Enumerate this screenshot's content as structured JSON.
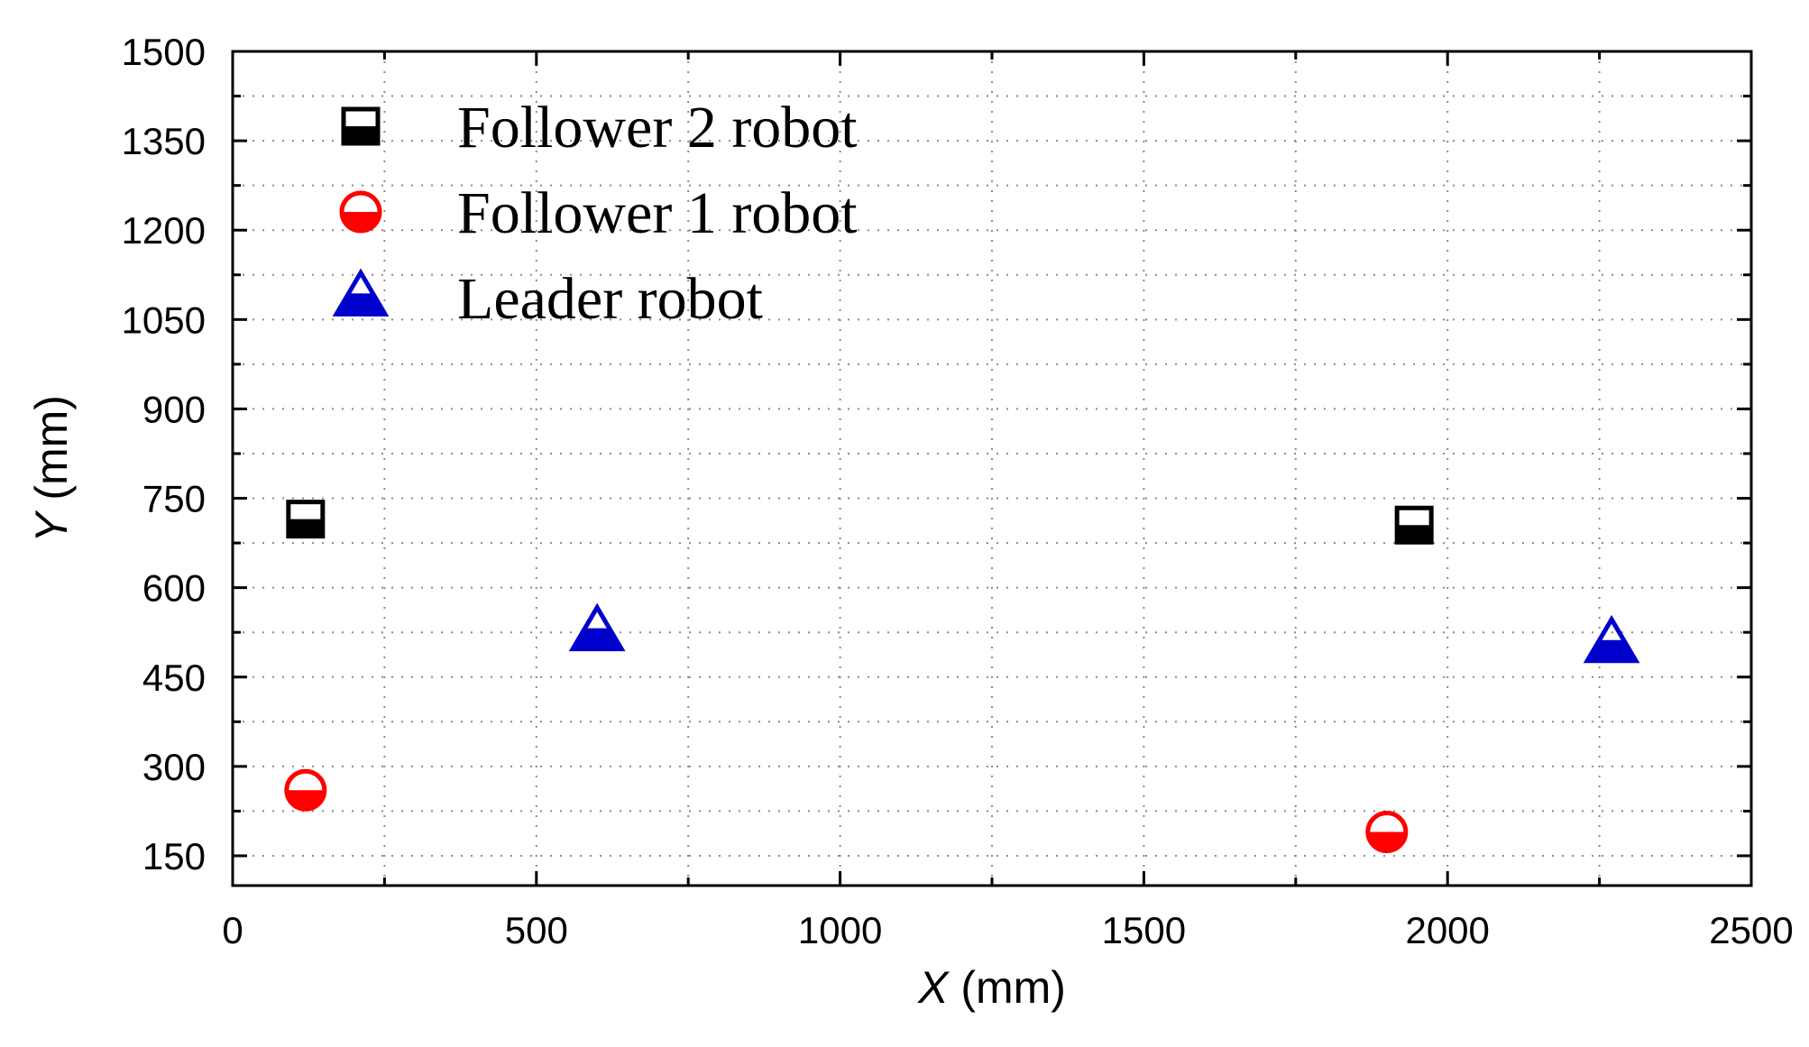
{
  "chart_data": {
    "type": "scatter",
    "title": "",
    "xlabel": {
      "var": "X",
      "unit": " (mm)"
    },
    "ylabel": {
      "var": "Y",
      "unit": " (mm)"
    },
    "xlim": [
      0,
      2500
    ],
    "ylim": [
      100,
      1500
    ],
    "x_ticks": [
      0,
      500,
      1000,
      1500,
      2000,
      2500
    ],
    "y_ticks": [
      150,
      300,
      450,
      600,
      750,
      900,
      1050,
      1200,
      1350,
      1500
    ],
    "grid": true,
    "legend_position": "top-left",
    "series": [
      {
        "name": "Follower 2 robot",
        "marker": "half-filled-square",
        "color": "#000000",
        "points": [
          [
            120,
            715
          ],
          [
            1945,
            705
          ]
        ]
      },
      {
        "name": "Follower 1 robot",
        "marker": "half-filled-circle",
        "color": "#ff0000",
        "points": [
          [
            120,
            260
          ],
          [
            1900,
            190
          ]
        ]
      },
      {
        "name": "Leader robot",
        "marker": "half-filled-triangle",
        "color": "#0000cc",
        "points": [
          [
            600,
            525
          ],
          [
            2270,
            505
          ]
        ]
      }
    ]
  }
}
